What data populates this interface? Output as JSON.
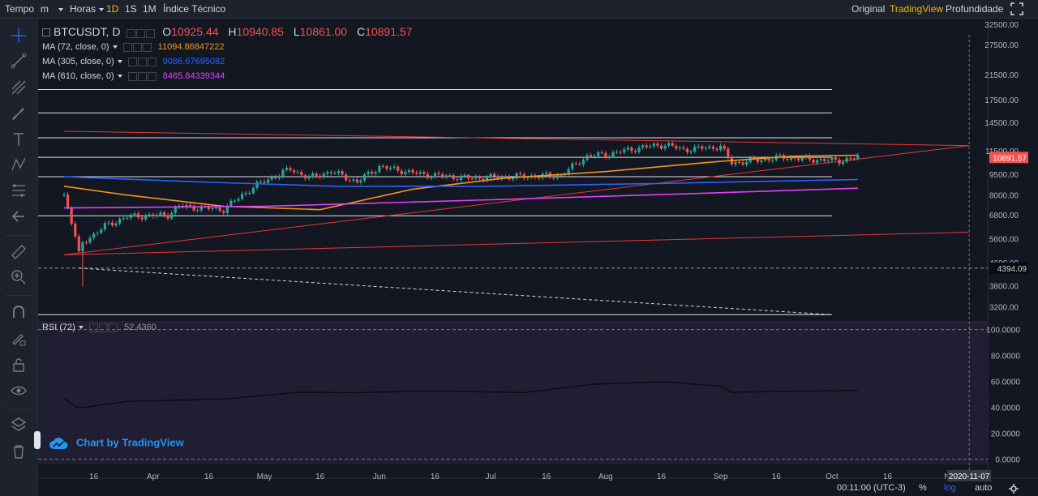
{
  "toolbar": {
    "tempo": "Tempo",
    "minutes": "m",
    "hours": "Horas",
    "intervals": [
      "1D",
      "1S",
      "1M"
    ],
    "active_interval": "1D",
    "indicator": "Índice Técnico",
    "views": [
      "Original",
      "TradingView",
      "Profundidade"
    ],
    "active_view": "TradingView"
  },
  "legend": {
    "symbol": "BTCUSDT, D",
    "o_label": "O",
    "o_value": "10925.44",
    "h_label": "H",
    "h_value": "10940.85",
    "l_label": "L",
    "l_value": "10861.00",
    "c_label": "C",
    "c_value": "10891.57",
    "ma1_label": "MA (72, close, 0)",
    "ma1_value": "11094.86847222",
    "ma2_label": "MA (305, close, 0)",
    "ma2_value": "9086.67695082",
    "ma3_label": "MA (610, close, 0)",
    "ma3_value": "8465.84339344",
    "rsi_label": "RSI (72)",
    "rsi_value": "52.4360"
  },
  "watermark": "Chart by TradingView",
  "status": {
    "time": "00:11:00 (UTC-3)",
    "percent": "%",
    "log": "log",
    "auto": "auto",
    "date_marker": "2020-11-07"
  },
  "colors": {
    "background": "#131722",
    "up": "#26a69a",
    "down": "#ef5350",
    "ma1": "#f7931a",
    "ma2": "#2962ff",
    "ma3": "#e040fb",
    "accent": "#f0b90b",
    "trend": "#e53935"
  },
  "chart_data": [
    {
      "type": "candlestick",
      "title": "BTCUSDT, D",
      "y_scale": "log",
      "y_ticks": [
        3200,
        3800,
        4600,
        5600,
        6800,
        8000,
        9500,
        11500,
        14500,
        17500,
        21500,
        27500,
        32500
      ],
      "y_tick_labels": [
        "3200.00",
        "3800.00",
        "4600.00",
        "5600.00",
        "6800.00",
        "8000.00",
        "9500.00",
        "11500.00",
        "14500.00",
        "17500.00",
        "21500.00",
        "27500.00",
        "32500.00"
      ],
      "x_tick_labels": [
        "16",
        "Apr",
        "16",
        "May",
        "16",
        "Jun",
        "16",
        "Jul",
        "16",
        "Aug",
        "16",
        "Sep",
        "16",
        "Oct",
        "16",
        "N"
      ],
      "price_labels": [
        "10891.57",
        "4394.09"
      ],
      "horizontal_levels": [
        19000,
        15700,
        12800,
        10900,
        9300,
        6750,
        3000,
        4394.09
      ],
      "anchors": [
        {
          "date": "2020-03-08",
          "close": 8000
        },
        {
          "date": "2020-03-12",
          "close": 4900
        },
        {
          "date": "2020-03-13",
          "close": 5400
        },
        {
          "date": "2020-03-19",
          "close": 6200
        },
        {
          "date": "2020-03-25",
          "close": 6700
        },
        {
          "date": "2020-04-05",
          "close": 6800
        },
        {
          "date": "2020-04-08",
          "close": 7300
        },
        {
          "date": "2020-04-20",
          "close": 7100
        },
        {
          "date": "2020-04-29",
          "close": 8700
        },
        {
          "date": "2020-05-08",
          "close": 9900
        },
        {
          "date": "2020-05-13",
          "close": 9200
        },
        {
          "date": "2020-05-19",
          "close": 9700
        },
        {
          "date": "2020-05-26",
          "close": 8900
        },
        {
          "date": "2020-06-01",
          "close": 10100
        },
        {
          "date": "2020-06-12",
          "close": 9500
        },
        {
          "date": "2020-06-25",
          "close": 9200
        },
        {
          "date": "2020-07-06",
          "close": 9300
        },
        {
          "date": "2020-07-20",
          "close": 9400
        },
        {
          "date": "2020-07-27",
          "close": 11000
        },
        {
          "date": "2020-08-02",
          "close": 11200
        },
        {
          "date": "2020-08-10",
          "close": 11800
        },
        {
          "date": "2020-08-17",
          "close": 12100
        },
        {
          "date": "2020-08-22",
          "close": 11600
        },
        {
          "date": "2020-09-01",
          "close": 11900
        },
        {
          "date": "2020-09-04",
          "close": 10400
        },
        {
          "date": "2020-09-18",
          "close": 10900
        },
        {
          "date": "2020-09-26",
          "close": 10700
        },
        {
          "date": "2020-10-03",
          "close": 10600
        },
        {
          "date": "2020-10-08",
          "close": 10900
        }
      ],
      "ma_series": [
        {
          "name": "MA (72, close, 0)",
          "points": [
            {
              "date": "2020-03-08",
              "value": 8600
            },
            {
              "date": "2020-03-25",
              "value": 8000
            },
            {
              "date": "2020-04-20",
              "value": 7300
            },
            {
              "date": "2020-05-16",
              "value": 7100
            },
            {
              "date": "2020-06-10",
              "value": 8400
            },
            {
              "date": "2020-07-05",
              "value": 9200
            },
            {
              "date": "2020-08-01",
              "value": 9700
            },
            {
              "date": "2020-08-30",
              "value": 10500
            },
            {
              "date": "2020-09-20",
              "value": 11000
            },
            {
              "date": "2020-10-08",
              "value": 11094.87
            }
          ]
        },
        {
          "name": "MA (305, close, 0)",
          "points": [
            {
              "date": "2020-03-08",
              "value": 9300
            },
            {
              "date": "2020-04-15",
              "value": 8900
            },
            {
              "date": "2020-05-20",
              "value": 8600
            },
            {
              "date": "2020-07-01",
              "value": 8600
            },
            {
              "date": "2020-08-15",
              "value": 8800
            },
            {
              "date": "2020-10-08",
              "value": 9086.68
            }
          ]
        },
        {
          "name": "MA (610, close, 0)",
          "points": [
            {
              "date": "2020-03-08",
              "value": 7200
            },
            {
              "date": "2020-05-01",
              "value": 7300
            },
            {
              "date": "2020-07-01",
              "value": 7700
            },
            {
              "date": "2020-08-25",
              "value": 8100
            },
            {
              "date": "2020-10-08",
              "value": 8465.84
            }
          ]
        }
      ],
      "trendlines": [
        {
          "from": {
            "date": "2020-03-08",
            "value": 13500
          },
          "to": {
            "date": "2020-11-07",
            "value": 12000
          }
        },
        {
          "from": {
            "date": "2020-03-08",
            "value": 4900
          },
          "to": {
            "date": "2020-11-07",
            "value": 12000
          }
        },
        {
          "from": {
            "date": "2020-03-08",
            "value": 4900
          },
          "to": {
            "date": "2020-11-07",
            "value": 5900
          }
        },
        {
          "from": {
            "date": "2020-03-12",
            "value": 4394.09
          },
          "to": {
            "date": "2020-10-01",
            "value": 3000
          },
          "dashed": true
        }
      ]
    },
    {
      "type": "line",
      "title": "RSI (72)",
      "ylim": [
        0,
        100
      ],
      "y_tick_labels": [
        "0.0000",
        "20.0000",
        "40.0000",
        "60.0000",
        "80.0000",
        "100.0000"
      ],
      "series": [
        {
          "name": "RSI (72)",
          "points": [
            {
              "date": "2020-03-08",
              "value": 46
            },
            {
              "date": "2020-03-12",
              "value": 40
            },
            {
              "date": "2020-03-25",
              "value": 44
            },
            {
              "date": "2020-04-20",
              "value": 47
            },
            {
              "date": "2020-05-10",
              "value": 51
            },
            {
              "date": "2020-05-26",
              "value": 52
            },
            {
              "date": "2020-06-15",
              "value": 52
            },
            {
              "date": "2020-07-10",
              "value": 52
            },
            {
              "date": "2020-07-28",
              "value": 57
            },
            {
              "date": "2020-08-02",
              "value": 59
            },
            {
              "date": "2020-08-17",
              "value": 59
            },
            {
              "date": "2020-09-01",
              "value": 57
            },
            {
              "date": "2020-09-04",
              "value": 51
            },
            {
              "date": "2020-09-20",
              "value": 53
            },
            {
              "date": "2020-10-08",
              "value": 52.436
            }
          ]
        }
      ]
    }
  ]
}
